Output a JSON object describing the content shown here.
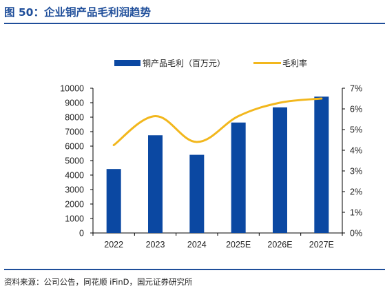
{
  "figure": {
    "title": "图 50：企业铜产品毛利润趋势",
    "source": "资料来源：公司公告，同花顺 iFinD，国元证券研究所"
  },
  "colors": {
    "bar": "#0b48a2",
    "line": "#f2b71d",
    "accent": "#1f4e9a"
  },
  "chart_data": {
    "type": "bar",
    "categories": [
      "2022",
      "2023",
      "2024",
      "2025E",
      "2026E",
      "2027E"
    ],
    "series": [
      {
        "name": "铜产品毛利（百万元）",
        "type": "bar",
        "axis": "left",
        "values": [
          4420,
          6750,
          5400,
          7630,
          8680,
          9420
        ]
      },
      {
        "name": "毛利率",
        "type": "line",
        "axis": "right",
        "smooth": true,
        "values": [
          4.25,
          5.65,
          4.4,
          5.65,
          6.3,
          6.5
        ]
      }
    ],
    "y_left": {
      "min": 0,
      "max": 10000,
      "step": 1000,
      "ticks": [
        "0",
        "1000",
        "2000",
        "3000",
        "4000",
        "5000",
        "6000",
        "7000",
        "8000",
        "9000",
        "10000"
      ]
    },
    "y_right": {
      "min": 0,
      "max": 7,
      "step": 1,
      "ticks": [
        "0%",
        "1%",
        "2%",
        "3%",
        "4%",
        "5%",
        "6%",
        "7%"
      ]
    },
    "legend_position": "top-center",
    "grid": false
  }
}
